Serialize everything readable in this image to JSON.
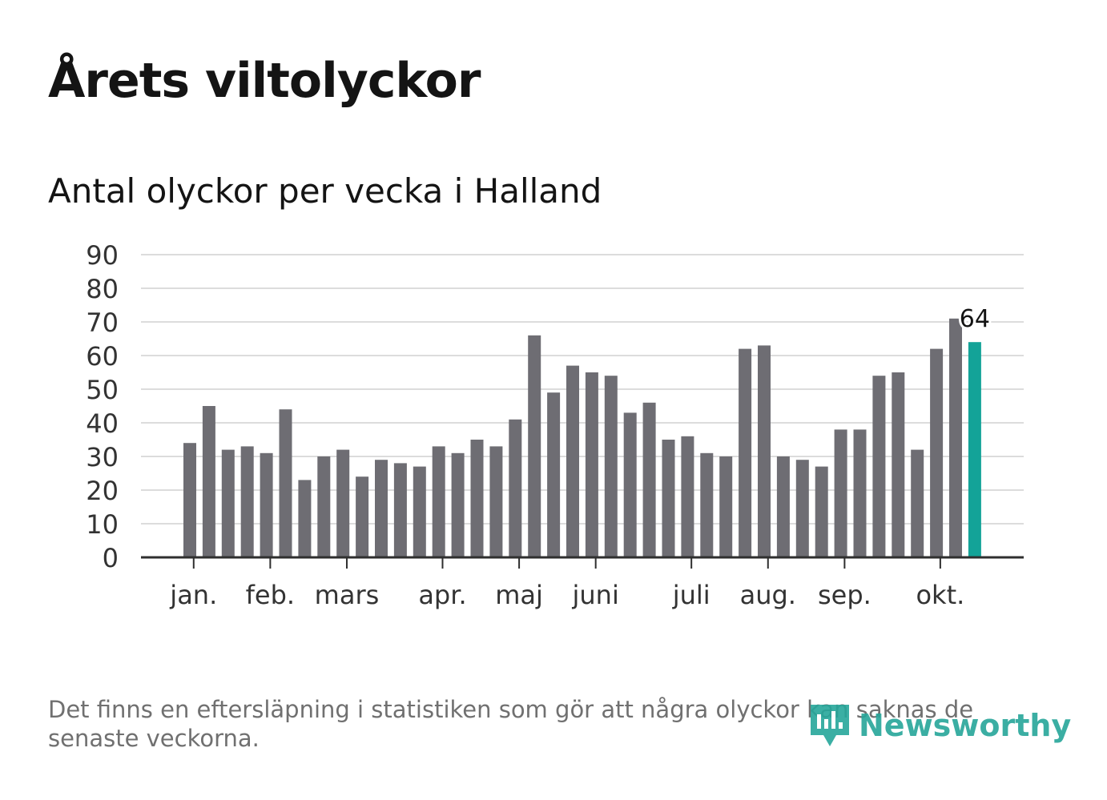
{
  "title": "Årets viltolyckor",
  "subtitle": "Antal olyckor per vecka i Halland",
  "footnote": "Det finns en eftersläpning i statistiken som gör att några olyckor kan saknas de senaste veckorna.",
  "logo": {
    "text": "Newsworthy",
    "icon": "bar-chart-badge-icon"
  },
  "colors": {
    "bar": "#6e6d73",
    "highlight": "#13a398",
    "grid": "#dcdcdc",
    "axis": "#2f2f2f",
    "text": "#141414",
    "tick_text": "#333333",
    "footnote": "#707070",
    "logo": "#26a69a"
  },
  "chart_data": {
    "type": "bar",
    "title": "Antal olyckor per vecka i Halland",
    "xlabel": "",
    "ylabel": "",
    "ylim": [
      0,
      90
    ],
    "yticks": [
      0,
      10,
      20,
      30,
      40,
      50,
      60,
      70,
      80,
      90
    ],
    "grid": true,
    "values": [
      34,
      45,
      32,
      33,
      31,
      44,
      23,
      30,
      32,
      24,
      29,
      28,
      27,
      33,
      31,
      35,
      33,
      41,
      66,
      49,
      57,
      55,
      54,
      43,
      46,
      35,
      36,
      31,
      30,
      62,
      63,
      30,
      29,
      27,
      38,
      38,
      54,
      55,
      32,
      62,
      71,
      64
    ],
    "highlight_index": 41,
    "highlight_label": "64",
    "month_labels": [
      {
        "label": "jan.",
        "week_index": 0.2
      },
      {
        "label": "feb.",
        "week_index": 4.2
      },
      {
        "label": "mars",
        "week_index": 8.2
      },
      {
        "label": "apr.",
        "week_index": 13.2
      },
      {
        "label": "maj",
        "week_index": 17.2
      },
      {
        "label": "juni",
        "week_index": 21.2
      },
      {
        "label": "juli",
        "week_index": 26.2
      },
      {
        "label": "aug.",
        "week_index": 30.2
      },
      {
        "label": "sep.",
        "week_index": 34.2
      },
      {
        "label": "okt.",
        "week_index": 39.2
      }
    ]
  }
}
